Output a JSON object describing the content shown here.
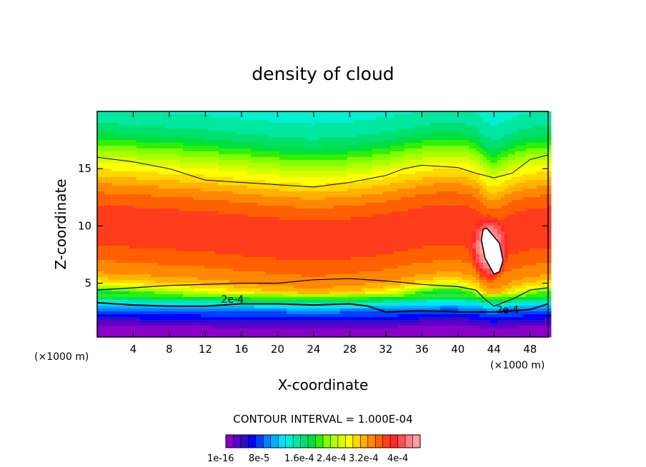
{
  "chart_data": {
    "type": "heatmap",
    "title": "density of cloud",
    "xlabel": "X-coordinate",
    "ylabel": "Z-coordinate",
    "x_unit": "(×1000 m)",
    "xlim": [
      0,
      50
    ],
    "ylim": [
      0.3,
      20
    ],
    "x_ticks": [
      4,
      8,
      12,
      16,
      20,
      24,
      28,
      32,
      36,
      40,
      44,
      48
    ],
    "y_ticks": [
      5,
      10,
      15
    ],
    "contour_interval_label": "CONTOUR INTERVAL = 1.000E-04",
    "contour_labels": [
      "2e-4",
      "2e-4"
    ],
    "colorbar": {
      "labels": [
        "1e-16",
        "8e-5",
        "1.6e-4",
        "2.4e-4",
        "3.2e-4",
        "4e-4"
      ],
      "colors": [
        "#8a00c8",
        "#5a00c8",
        "#2a10c8",
        "#0000ff",
        "#0040ff",
        "#0080ff",
        "#00b0ff",
        "#00e0ff",
        "#00f0d0",
        "#00e8a0",
        "#00e070",
        "#00e040",
        "#30f000",
        "#80ff00",
        "#b0ff00",
        "#d8ff00",
        "#ffff00",
        "#ffd800",
        "#ffb000",
        "#ff8800",
        "#ff6000",
        "#ff3c1c",
        "#ff2828",
        "#ff5050",
        "#ff8080",
        "#ffa0a0"
      ]
    },
    "z_stops": [
      0.3,
      0.8,
      1.0,
      1.3,
      1.6,
      2.0,
      2.5,
      2.9,
      3.3,
      3.8,
      4.4,
      5.0,
      5.6,
      6.4,
      7.2,
      8.0,
      9.0,
      10.0,
      11.0,
      12.0,
      13.0,
      14.0,
      15.0,
      16.0,
      17.0,
      18.0,
      19.0,
      20.0
    ],
    "value_stops": [
      0,
      0.4,
      0.7,
      1.2,
      2.0,
      3.6,
      4.8,
      6.4,
      8.8,
      12.4,
      16.4,
      18.4,
      19.4,
      20.0,
      20.6,
      21.2,
      21.4,
      21.6,
      21.2,
      20.4,
      19.2,
      17.6,
      16.0,
      14.0,
      12.0,
      10.4,
      9.4,
      8.8
    ],
    "profile_x": [
      0,
      4,
      8,
      12,
      16,
      20,
      24,
      28,
      32,
      36,
      38,
      40,
      42,
      43,
      44,
      45,
      46,
      48,
      50
    ],
    "profile_shift": [
      0.6,
      0.4,
      0.2,
      0.0,
      -0.3,
      -0.6,
      -0.8,
      -0.6,
      -0.2,
      0.4,
      0.6,
      0.6,
      0.2,
      -0.6,
      -1.0,
      -0.6,
      -0.2,
      0.2,
      0.4
    ],
    "bright_core": {
      "x": 43.5,
      "z": 8.0,
      "value": 26.0
    },
    "contour_2e4_top": [
      [
        0,
        16.0
      ],
      [
        4,
        15.6
      ],
      [
        8,
        15.0
      ],
      [
        12,
        14.0
      ],
      [
        16,
        13.8
      ],
      [
        20,
        13.6
      ],
      [
        24,
        13.4
      ],
      [
        28,
        13.8
      ],
      [
        32,
        14.4
      ],
      [
        34,
        15.0
      ],
      [
        36,
        15.3
      ],
      [
        40,
        15.1
      ],
      [
        42,
        14.6
      ],
      [
        44,
        14.2
      ],
      [
        46,
        14.6
      ],
      [
        48,
        15.8
      ],
      [
        50,
        16.2
      ]
    ],
    "contour_2e4_mid": [
      [
        0,
        4.4
      ],
      [
        4,
        4.6
      ],
      [
        8,
        4.8
      ],
      [
        12,
        4.9
      ],
      [
        16,
        5.0
      ],
      [
        20,
        5.0
      ],
      [
        24,
        5.3
      ],
      [
        28,
        5.4
      ],
      [
        32,
        5.2
      ],
      [
        36,
        4.9
      ],
      [
        40,
        4.7
      ],
      [
        42,
        4.4
      ],
      [
        43,
        3.6
      ],
      [
        44,
        3.0
      ],
      [
        46,
        3.6
      ],
      [
        48,
        4.4
      ],
      [
        50,
        4.6
      ]
    ],
    "contour_2e4_low": [
      [
        0,
        3.3
      ],
      [
        4,
        3.1
      ],
      [
        8,
        3.0
      ],
      [
        12,
        3.0
      ],
      [
        16,
        3.2
      ],
      [
        20,
        3.2
      ],
      [
        24,
        3.1
      ],
      [
        28,
        3.2
      ],
      [
        30,
        3.0
      ],
      [
        32,
        2.5
      ],
      [
        36,
        2.6
      ],
      [
        40,
        2.5
      ],
      [
        44,
        2.5
      ],
      [
        48,
        2.7
      ],
      [
        50,
        3.2
      ]
    ],
    "hole_2e4": [
      [
        43.2,
        9.8
      ],
      [
        44.6,
        8.5
      ],
      [
        45.0,
        7.0
      ],
      [
        44.6,
        6.0
      ],
      [
        44.0,
        5.8
      ],
      [
        43.0,
        7.2
      ],
      [
        42.6,
        8.8
      ],
      [
        42.8,
        9.7
      ]
    ]
  }
}
